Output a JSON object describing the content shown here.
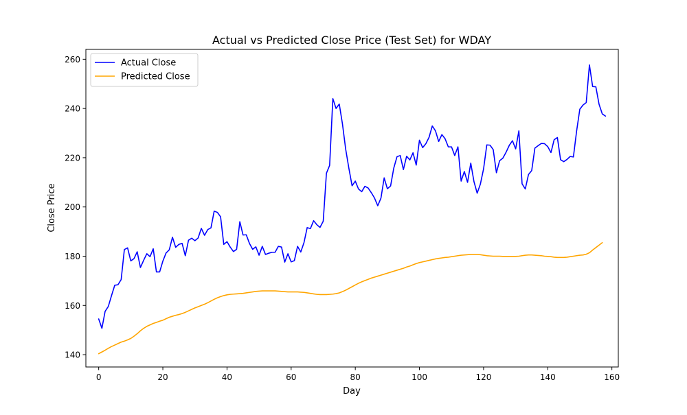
{
  "chart_data": {
    "type": "line",
    "title": "Actual vs Predicted Close Price (Test Set) for WDAY",
    "xlabel": "Day",
    "ylabel": "Close Price",
    "xlim": [
      -4,
      162
    ],
    "ylim": [
      135,
      264
    ],
    "xticks": [
      0,
      20,
      40,
      60,
      80,
      100,
      120,
      140,
      160
    ],
    "yticks": [
      140,
      160,
      180,
      200,
      220,
      240,
      260
    ],
    "grid": false,
    "legend_position": "top-left",
    "series": [
      {
        "name": "Actual Close",
        "color": "#0000ff",
        "values": [
          154.5,
          150.7,
          157.6,
          159.6,
          164.0,
          168.2,
          168.4,
          170.5,
          182.7,
          183.4,
          178.1,
          179.0,
          181.8,
          175.4,
          178.3,
          181.0,
          179.8,
          183.0,
          173.6,
          173.6,
          178.0,
          181.3,
          182.6,
          187.7,
          183.6,
          184.8,
          185.2,
          180.2,
          186.5,
          187.3,
          186.3,
          187.4,
          191.3,
          188.5,
          190.8,
          191.5,
          198.3,
          197.8,
          196.0,
          184.8,
          185.9,
          183.7,
          181.9,
          182.8,
          194.0,
          188.6,
          188.7,
          185.2,
          182.8,
          183.8,
          180.4,
          184.0,
          180.7,
          181.2,
          181.6,
          181.6,
          184.0,
          183.7,
          177.6,
          181.0,
          177.7,
          178.2,
          184.0,
          181.7,
          185.5,
          191.6,
          191.2,
          194.4,
          192.8,
          191.7,
          194.2,
          213.7,
          216.9,
          244.0,
          240.0,
          241.8,
          233.7,
          223.5,
          215.7,
          208.6,
          210.5,
          207.3,
          206.2,
          208.4,
          207.7,
          205.8,
          203.6,
          200.5,
          203.6,
          211.8,
          207.4,
          208.5,
          215.8,
          220.4,
          220.9,
          215.2,
          220.6,
          219.1,
          222.0,
          217.0,
          227.1,
          224.1,
          225.7,
          228.3,
          232.9,
          230.9,
          226.6,
          229.4,
          227.7,
          224.4,
          224.4,
          220.9,
          224.4,
          210.5,
          214.4,
          210.0,
          217.8,
          210.3,
          205.6,
          209.3,
          215.5,
          225.2,
          225.1,
          223.3,
          213.9,
          218.8,
          219.8,
          222.2,
          225.0,
          226.9,
          223.6,
          230.9,
          209.4,
          207.3,
          213.2,
          214.8,
          223.9,
          224.9,
          225.8,
          225.7,
          224.5,
          222.1,
          227.3,
          228.2,
          219.2,
          218.4,
          219.3,
          220.5,
          220.3,
          230.8,
          239.7,
          241.4,
          242.4,
          257.7,
          248.9,
          248.8,
          241.7,
          237.8,
          236.9
        ]
      },
      {
        "name": "Predicted Close",
        "color": "#ffa500",
        "values": [
          140.4,
          141.1,
          141.8,
          142.6,
          143.3,
          143.9,
          144.5,
          145.1,
          145.5,
          146.0,
          146.6,
          147.5,
          148.5,
          149.7,
          150.7,
          151.5,
          152.1,
          152.7,
          153.1,
          153.6,
          154.0,
          154.6,
          155.2,
          155.6,
          156.0,
          156.3,
          156.7,
          157.2,
          157.8,
          158.4,
          159.0,
          159.5,
          160.0,
          160.5,
          161.1,
          161.8,
          162.5,
          163.1,
          163.6,
          164.0,
          164.3,
          164.5,
          164.6,
          164.7,
          164.8,
          164.9,
          165.1,
          165.3,
          165.5,
          165.7,
          165.8,
          165.9,
          165.9,
          165.9,
          165.9,
          165.9,
          165.8,
          165.7,
          165.6,
          165.5,
          165.5,
          165.5,
          165.5,
          165.4,
          165.3,
          165.1,
          164.9,
          164.7,
          164.5,
          164.4,
          164.4,
          164.4,
          164.5,
          164.6,
          164.8,
          165.1,
          165.6,
          166.2,
          166.9,
          167.6,
          168.3,
          169.0,
          169.6,
          170.1,
          170.6,
          171.1,
          171.5,
          171.9,
          172.3,
          172.7,
          173.1,
          173.5,
          173.9,
          174.3,
          174.7,
          175.1,
          175.6,
          176.0,
          176.5,
          177.0,
          177.4,
          177.7,
          178.0,
          178.3,
          178.6,
          178.9,
          179.1,
          179.3,
          179.5,
          179.6,
          179.8,
          180.0,
          180.2,
          180.4,
          180.5,
          180.6,
          180.7,
          180.7,
          180.7,
          180.6,
          180.4,
          180.2,
          180.1,
          180.0,
          180.0,
          180.0,
          179.9,
          179.9,
          179.9,
          179.9,
          179.9,
          180.0,
          180.2,
          180.4,
          180.5,
          180.5,
          180.4,
          180.3,
          180.2,
          180.0,
          179.9,
          179.8,
          179.6,
          179.5,
          179.5,
          179.5,
          179.6,
          179.8,
          180.0,
          180.2,
          180.4,
          180.5,
          180.8,
          181.4,
          182.5,
          183.5,
          184.5,
          185.5
        ]
      }
    ]
  }
}
